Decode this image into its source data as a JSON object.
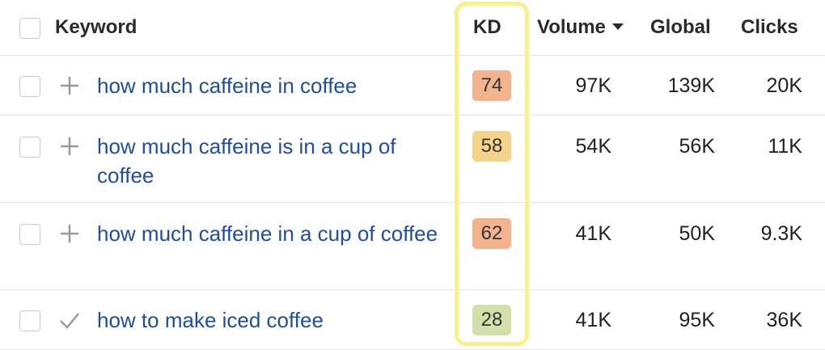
{
  "header": {
    "keyword": "Keyword",
    "kd": "KD",
    "volume": "Volume",
    "global": "Global",
    "clicks": "Clicks"
  },
  "colors": {
    "link": "#1f4ea1",
    "kd_hard": "#f3b48d",
    "kd_medium": "#f6d38b",
    "kd_easy": "#d3e0a9",
    "highlight": "#fbef8c"
  },
  "rows": [
    {
      "icon": "plus-icon",
      "keyword": "how much caffeine in coffee",
      "kd": "74",
      "volume": "97K",
      "global": "139K",
      "clicks": "20K"
    },
    {
      "icon": "plus-icon",
      "keyword": "how much caffeine is in a cup of coffee",
      "kd": "58",
      "volume": "54K",
      "global": "56K",
      "clicks": "11K"
    },
    {
      "icon": "plus-icon",
      "keyword": "how much caffeine in a cup of coffee",
      "kd": "62",
      "volume": "41K",
      "global": "50K",
      "clicks": "9.3K"
    },
    {
      "icon": "checkmark-icon",
      "keyword": "how to make iced coffee",
      "kd": "28",
      "volume": "41K",
      "global": "95K",
      "clicks": "36K"
    }
  ]
}
